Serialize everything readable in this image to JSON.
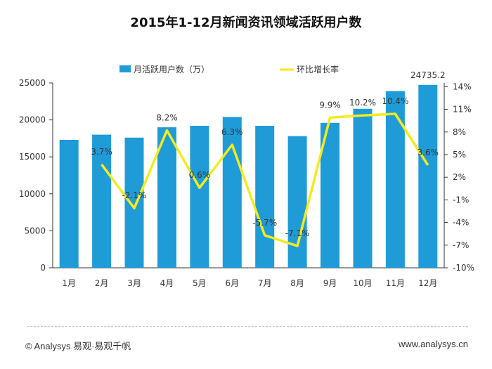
{
  "title": "2015年1-12月新闻资讯领域活跃用户数",
  "footer": {
    "left": "© Analysys 易观·易观千帆",
    "right": "www.analysys.cn"
  },
  "colors": {
    "bar": "#1F9BD7",
    "line": "#F5EA1E",
    "axis": "#333333"
  },
  "chart_data": {
    "type": "bar",
    "title": "2015年1-12月新闻资讯领域活跃用户数",
    "categories": [
      "1月",
      "2月",
      "3月",
      "4月",
      "5月",
      "6月",
      "7月",
      "8月",
      "9月",
      "10月",
      "11月",
      "12月"
    ],
    "series": [
      {
        "name": "月活跃用户数（万）",
        "type": "bar",
        "axis": "left",
        "values": [
          17300,
          18000,
          17600,
          19000,
          19200,
          20400,
          19200,
          17800,
          19600,
          21500,
          23900,
          24735.2
        ]
      },
      {
        "name": "环比增长率",
        "type": "line",
        "axis": "right",
        "values": [
          null,
          3.7,
          -2.1,
          8.2,
          0.6,
          6.3,
          -5.7,
          -7.1,
          9.9,
          10.2,
          10.4,
          3.6
        ]
      }
    ],
    "bar_value_labels": [
      "",
      "",
      "",
      "",
      "",
      "",
      "",
      "",
      "",
      "",
      "",
      "24735.2"
    ],
    "line_labels": [
      "",
      "3.7%",
      "-2.1%",
      "8.2%",
      "0.6%",
      "6.3%",
      "-5.7%",
      "-7.1%",
      "9.9%",
      "10.2%",
      "10.4%",
      "3.6%"
    ],
    "y_left_ticks": [
      "0",
      "5000",
      "10000",
      "15000",
      "20000",
      "25000"
    ],
    "y_left_lim": [
      0,
      25000
    ],
    "y_right_ticks": [
      "-10%",
      "-7%",
      "-4%",
      "-1%",
      "2%",
      "5%",
      "8%",
      "11%",
      "14%"
    ],
    "y_right_lim": [
      -10,
      14.5
    ],
    "legend_placement": "top"
  }
}
